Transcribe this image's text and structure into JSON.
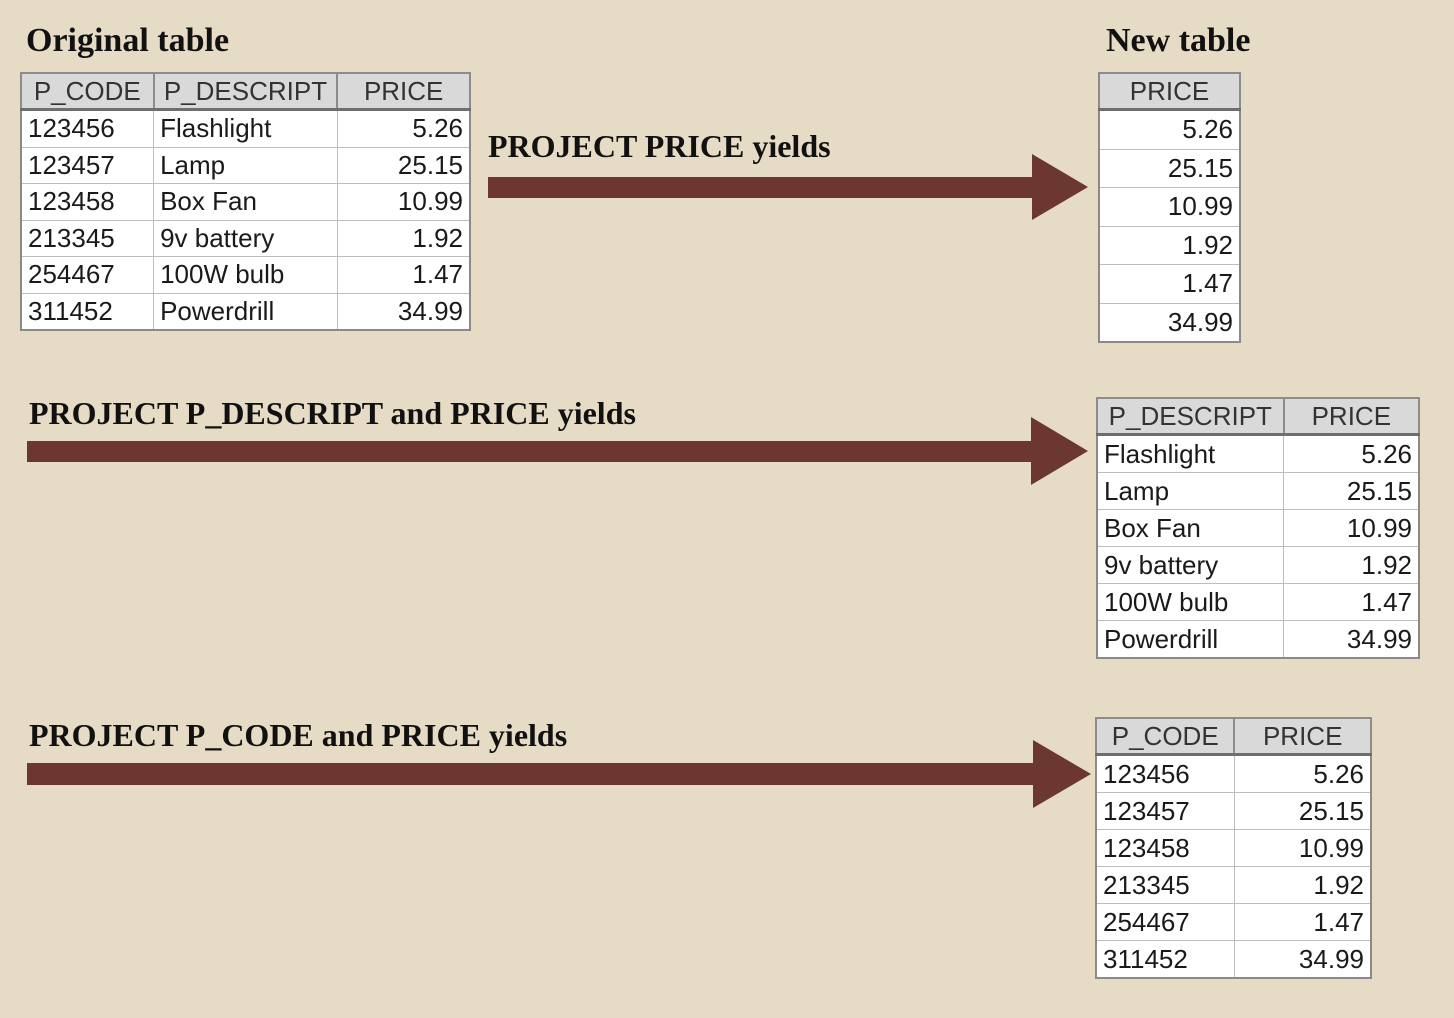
{
  "headings": {
    "original": "Original table",
    "new": "New table"
  },
  "labels": {
    "project_price": "PROJECT PRICE yields",
    "project_descript_price": "PROJECT P_DESCRIPT and PRICE yields",
    "project_code_price": "PROJECT P_CODE and PRICE yields"
  },
  "colors": {
    "background": "#e6dbc4",
    "arrow": "#6b3730",
    "header_bg": "#d9d9d9"
  },
  "original_table": {
    "columns": [
      "P_CODE",
      "P_DESCRIPT",
      "PRICE"
    ],
    "rows": [
      [
        "123456",
        "Flashlight",
        "5.26"
      ],
      [
        "123457",
        "Lamp",
        "25.15"
      ],
      [
        "123458",
        "Box Fan",
        "10.99"
      ],
      [
        "213345",
        "9v battery",
        "1.92"
      ],
      [
        "254467",
        "100W bulb",
        "1.47"
      ],
      [
        "311452",
        "Powerdrill",
        "34.99"
      ]
    ]
  },
  "price_table": {
    "columns": [
      "PRICE"
    ],
    "rows": [
      [
        "5.26"
      ],
      [
        "25.15"
      ],
      [
        "10.99"
      ],
      [
        "1.92"
      ],
      [
        "1.47"
      ],
      [
        "34.99"
      ]
    ]
  },
  "descript_price_table": {
    "columns": [
      "P_DESCRIPT",
      "PRICE"
    ],
    "rows": [
      [
        "Flashlight",
        "5.26"
      ],
      [
        "Lamp",
        "25.15"
      ],
      [
        "Box Fan",
        "10.99"
      ],
      [
        "9v battery",
        "1.92"
      ],
      [
        "100W bulb",
        "1.47"
      ],
      [
        "Powerdrill",
        "34.99"
      ]
    ]
  },
  "code_price_table": {
    "columns": [
      "P_CODE",
      "PRICE"
    ],
    "rows": [
      [
        "123456",
        "5.26"
      ],
      [
        "123457",
        "25.15"
      ],
      [
        "123458",
        "10.99"
      ],
      [
        "213345",
        "1.92"
      ],
      [
        "254467",
        "1.47"
      ],
      [
        "311452",
        "34.99"
      ]
    ]
  }
}
